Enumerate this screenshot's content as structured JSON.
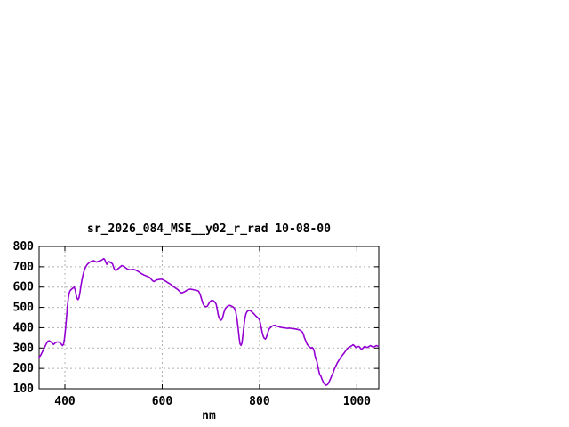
{
  "page": {
    "background_color": "#ffffff"
  },
  "chart_data": {
    "type": "line",
    "title": "sr_2026_084_MSE__y02_r_rad 10-08-00",
    "xlabel": "nm",
    "ylabel": "",
    "xlim": [
      347,
      1045
    ],
    "ylim": [
      100,
      800
    ],
    "grid": true,
    "grid_style": "dashed",
    "legend": "none",
    "x_tick_values": [
      400,
      600,
      800,
      1000
    ],
    "x_tick_labels": [
      "400",
      "600",
      "800",
      "1000"
    ],
    "y_tick_values": [
      100,
      200,
      300,
      400,
      500,
      600,
      700,
      800
    ],
    "y_tick_labels": [
      "100",
      "200",
      "300",
      "400",
      "500",
      "600",
      "700",
      "800"
    ],
    "colors": {
      "line": "#9400d3",
      "grid": "#b0b0b0",
      "axis": "#000000",
      "text": "#000000",
      "background": "#ffffff"
    },
    "series": [
      {
        "name": "sr_2026_084_MSE__y02_r_rad 10-08-00",
        "points": [
          [
            347,
            255
          ],
          [
            350,
            263
          ],
          [
            354,
            282
          ],
          [
            358,
            302
          ],
          [
            362,
            322
          ],
          [
            365,
            334
          ],
          [
            368,
            336
          ],
          [
            371,
            331
          ],
          [
            374,
            323
          ],
          [
            377,
            318
          ],
          [
            380,
            325
          ],
          [
            383,
            329
          ],
          [
            386,
            330
          ],
          [
            389,
            328
          ],
          [
            392,
            321
          ],
          [
            395,
            312
          ],
          [
            397,
            318
          ],
          [
            399,
            345
          ],
          [
            401,
            390
          ],
          [
            403,
            440
          ],
          [
            405,
            500
          ],
          [
            407,
            545
          ],
          [
            409,
            572
          ],
          [
            411,
            583
          ],
          [
            413,
            588
          ],
          [
            415,
            592
          ],
          [
            417,
            596
          ],
          [
            419,
            600
          ],
          [
            421,
            588
          ],
          [
            423,
            562
          ],
          [
            425,
            545
          ],
          [
            427,
            538
          ],
          [
            429,
            548
          ],
          [
            431,
            575
          ],
          [
            433,
            608
          ],
          [
            435,
            635
          ],
          [
            437,
            658
          ],
          [
            439,
            675
          ],
          [
            441,
            690
          ],
          [
            443,
            700
          ],
          [
            445,
            708
          ],
          [
            447,
            714
          ],
          [
            450,
            721
          ],
          [
            453,
            725
          ],
          [
            456,
            728
          ],
          [
            459,
            730
          ],
          [
            462,
            726
          ],
          [
            465,
            723
          ],
          [
            468,
            726
          ],
          [
            471,
            729
          ],
          [
            474,
            731
          ],
          [
            477,
            735
          ],
          [
            480,
            740
          ],
          [
            482,
            735
          ],
          [
            484,
            722
          ],
          [
            486,
            712
          ],
          [
            488,
            718
          ],
          [
            490,
            726
          ],
          [
            492,
            724
          ],
          [
            494,
            720
          ],
          [
            496,
            718
          ],
          [
            498,
            714
          ],
          [
            500,
            700
          ],
          [
            502,
            686
          ],
          [
            505,
            682
          ],
          [
            508,
            688
          ],
          [
            511,
            694
          ],
          [
            514,
            700
          ],
          [
            517,
            706
          ],
          [
            520,
            703
          ],
          [
            523,
            698
          ],
          [
            526,
            693
          ],
          [
            529,
            688
          ],
          [
            532,
            686
          ],
          [
            535,
            685
          ],
          [
            538,
            686
          ],
          [
            541,
            687
          ],
          [
            544,
            685
          ],
          [
            547,
            682
          ],
          [
            550,
            678
          ],
          [
            553,
            673
          ],
          [
            556,
            668
          ],
          [
            559,
            664
          ],
          [
            562,
            660
          ],
          [
            565,
            657
          ],
          [
            568,
            654
          ],
          [
            571,
            651
          ],
          [
            574,
            648
          ],
          [
            577,
            640
          ],
          [
            580,
            632
          ],
          [
            583,
            627
          ],
          [
            586,
            632
          ],
          [
            589,
            636
          ],
          [
            592,
            637
          ],
          [
            595,
            638
          ],
          [
            598,
            639
          ],
          [
            602,
            636
          ],
          [
            605,
            632
          ],
          [
            608,
            628
          ],
          [
            611,
            623
          ],
          [
            614,
            619
          ],
          [
            617,
            614
          ],
          [
            620,
            609
          ],
          [
            623,
            603
          ],
          [
            626,
            598
          ],
          [
            629,
            593
          ],
          [
            632,
            588
          ],
          [
            635,
            581
          ],
          [
            638,
            573
          ],
          [
            640,
            571
          ],
          [
            642,
            573
          ],
          [
            645,
            576
          ],
          [
            648,
            580
          ],
          [
            651,
            585
          ],
          [
            654,
            588
          ],
          [
            657,
            590
          ],
          [
            660,
            589
          ],
          [
            663,
            588
          ],
          [
            666,
            586
          ],
          [
            669,
            585
          ],
          [
            672,
            583
          ],
          [
            675,
            580
          ],
          [
            678,
            565
          ],
          [
            681,
            540
          ],
          [
            684,
            518
          ],
          [
            687,
            506
          ],
          [
            690,
            503
          ],
          [
            693,
            507
          ],
          [
            696,
            520
          ],
          [
            699,
            530
          ],
          [
            702,
            535
          ],
          [
            705,
            533
          ],
          [
            708,
            527
          ],
          [
            711,
            515
          ],
          [
            713,
            492
          ],
          [
            715,
            465
          ],
          [
            717,
            448
          ],
          [
            719,
            440
          ],
          [
            721,
            437
          ],
          [
            723,
            443
          ],
          [
            725,
            458
          ],
          [
            727,
            477
          ],
          [
            730,
            495
          ],
          [
            733,
            503
          ],
          [
            736,
            508
          ],
          [
            739,
            510
          ],
          [
            742,
            507
          ],
          [
            745,
            503
          ],
          [
            748,
            497
          ],
          [
            751,
            480
          ],
          [
            754,
            440
          ],
          [
            756,
            400
          ],
          [
            758,
            355
          ],
          [
            760,
            320
          ],
          [
            762,
            313
          ],
          [
            764,
            325
          ],
          [
            766,
            365
          ],
          [
            768,
            410
          ],
          [
            770,
            445
          ],
          [
            772,
            467
          ],
          [
            774,
            478
          ],
          [
            777,
            484
          ],
          [
            780,
            485
          ],
          [
            783,
            481
          ],
          [
            786,
            474
          ],
          [
            789,
            467
          ],
          [
            792,
            459
          ],
          [
            795,
            452
          ],
          [
            798,
            446
          ],
          [
            800,
            438
          ],
          [
            802,
            420
          ],
          [
            804,
            395
          ],
          [
            806,
            372
          ],
          [
            808,
            356
          ],
          [
            810,
            347
          ],
          [
            812,
            344
          ],
          [
            814,
            352
          ],
          [
            816,
            368
          ],
          [
            818,
            384
          ],
          [
            820,
            395
          ],
          [
            823,
            403
          ],
          [
            826,
            408
          ],
          [
            829,
            411
          ],
          [
            832,
            412
          ],
          [
            835,
            409
          ],
          [
            838,
            406
          ],
          [
            841,
            404
          ],
          [
            844,
            402
          ],
          [
            847,
            400
          ],
          [
            850,
            400
          ],
          [
            854,
            398
          ],
          [
            858,
            397
          ],
          [
            862,
            398
          ],
          [
            866,
            396
          ],
          [
            870,
            395
          ],
          [
            874,
            394
          ],
          [
            878,
            392
          ],
          [
            882,
            389
          ],
          [
            885,
            385
          ],
          [
            888,
            379
          ],
          [
            890,
            368
          ],
          [
            892,
            352
          ],
          [
            894,
            340
          ],
          [
            896,
            328
          ],
          [
            898,
            318
          ],
          [
            900,
            312
          ],
          [
            902,
            307
          ],
          [
            904,
            303
          ],
          [
            906,
            299
          ],
          [
            908,
            303
          ],
          [
            910,
            298
          ],
          [
            912,
            288
          ],
          [
            914,
            262
          ],
          [
            916,
            246
          ],
          [
            918,
            232
          ],
          [
            920,
            208
          ],
          [
            922,
            185
          ],
          [
            924,
            168
          ],
          [
            926,
            162
          ],
          [
            928,
            148
          ],
          [
            930,
            138
          ],
          [
            932,
            128
          ],
          [
            934,
            122
          ],
          [
            936,
            118
          ],
          [
            938,
            118
          ],
          [
            940,
            122
          ],
          [
            942,
            128
          ],
          [
            944,
            140
          ],
          [
            946,
            150
          ],
          [
            948,
            162
          ],
          [
            950,
            172
          ],
          [
            952,
            184
          ],
          [
            954,
            198
          ],
          [
            956,
            208
          ],
          [
            958,
            218
          ],
          [
            960,
            228
          ],
          [
            962,
            236
          ],
          [
            964,
            244
          ],
          [
            966,
            252
          ],
          [
            968,
            258
          ],
          [
            970,
            264
          ],
          [
            972,
            270
          ],
          [
            974,
            276
          ],
          [
            976,
            283
          ],
          [
            978,
            290
          ],
          [
            980,
            296
          ],
          [
            982,
            300
          ],
          [
            984,
            304
          ],
          [
            986,
            306
          ],
          [
            988,
            309
          ],
          [
            990,
            312
          ],
          [
            992,
            316
          ],
          [
            994,
            313
          ],
          [
            996,
            308
          ],
          [
            998,
            303
          ],
          [
            1000,
            305
          ],
          [
            1002,
            307
          ],
          [
            1004,
            308
          ],
          [
            1006,
            303
          ],
          [
            1008,
            297
          ],
          [
            1010,
            294
          ],
          [
            1012,
            298
          ],
          [
            1014,
            304
          ],
          [
            1016,
            308
          ],
          [
            1018,
            306
          ],
          [
            1020,
            303
          ],
          [
            1022,
            303
          ],
          [
            1024,
            306
          ],
          [
            1026,
            309
          ],
          [
            1028,
            312
          ],
          [
            1030,
            309
          ],
          [
            1032,
            306
          ],
          [
            1034,
            305
          ],
          [
            1036,
            307
          ],
          [
            1038,
            309
          ],
          [
            1040,
            312
          ],
          [
            1042,
            310
          ],
          [
            1044,
            309
          ]
        ]
      }
    ]
  }
}
